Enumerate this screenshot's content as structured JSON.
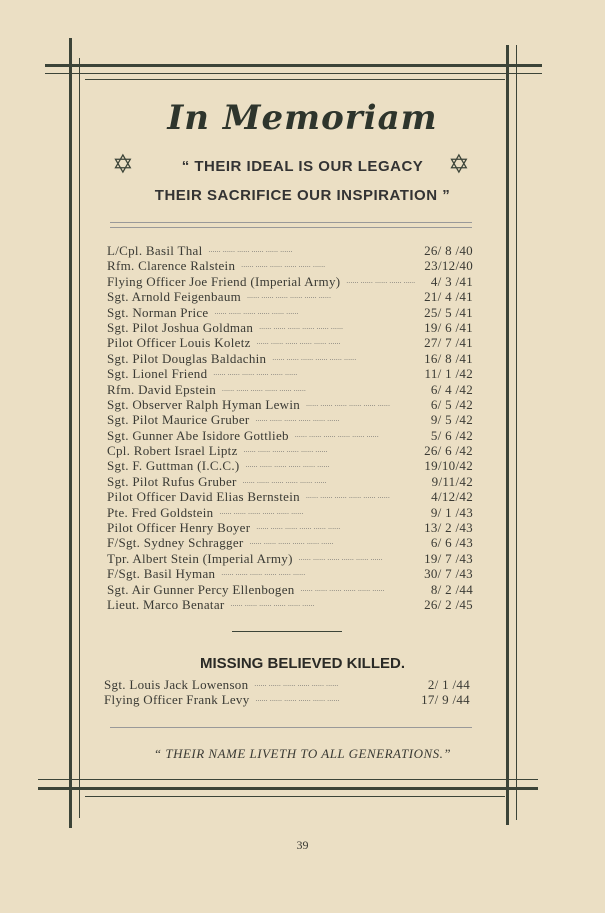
{
  "title": "In Memoriam",
  "motto_line1": "“ THEIR IDEAL IS OUR LEGACY",
  "motto_line2": "THEIR SACRIFICE OUR INSPIRATION ”",
  "icons": {
    "left": "star-of-david-icon",
    "right": "star-of-david-icon"
  },
  "fallen": [
    {
      "name": "L/Cpl. Basil Thal",
      "date": "26/ 8 /40"
    },
    {
      "name": "Rfm. Clarence Ralstein",
      "date": "23/12/40"
    },
    {
      "name": "Flying Officer Joe Friend (Imperial Army)",
      "date": "4/ 3 /41"
    },
    {
      "name": "Sgt. Arnold Feigenbaum",
      "date": "21/ 4 /41"
    },
    {
      "name": "Sgt. Norman Price",
      "date": "25/ 5 /41"
    },
    {
      "name": "Sgt. Pilot Joshua Goldman",
      "date": "19/ 6 /41"
    },
    {
      "name": "Pilot Officer Louis Koletz",
      "date": "27/ 7 /41"
    },
    {
      "name": "Sgt. Pilot Douglas Baldachin",
      "date": "16/ 8 /41"
    },
    {
      "name": "Sgt. Lionel Friend",
      "date": "11/ 1 /42"
    },
    {
      "name": "Rfm. David Epstein",
      "date": "6/ 4 /42"
    },
    {
      "name": "Sgt. Observer Ralph Hyman Lewin",
      "date": "6/ 5 /42"
    },
    {
      "name": "Sgt. Pilot Maurice Gruber",
      "date": "9/ 5 /42"
    },
    {
      "name": "Sgt. Gunner Abe Isidore Gottlieb",
      "date": "5/ 6 /42"
    },
    {
      "name": "Cpl. Robert Israel Liptz",
      "date": "26/ 6 /42"
    },
    {
      "name": "Sgt. F. Guttman (I.C.C.)",
      "date": "19/10/42"
    },
    {
      "name": "Sgt. Pilot Rufus Gruber",
      "date": "9/11/42"
    },
    {
      "name": "Pilot Officer David Elias Bernstein",
      "date": "4/12/42"
    },
    {
      "name": "Pte. Fred Goldstein",
      "date": "9/ 1 /43"
    },
    {
      "name": "Pilot Officer Henry Boyer",
      "date": "13/ 2 /43"
    },
    {
      "name": "F/Sgt. Sydney Schragger",
      "date": "6/ 6 /43"
    },
    {
      "name": "Tpr. Albert Stein (Imperial Army)",
      "date": "19/ 7 /43"
    },
    {
      "name": "F/Sgt. Basil Hyman",
      "date": "30/ 7 /43"
    },
    {
      "name": "Sgt. Air Gunner Percy Ellenbogen",
      "date": "8/ 2 /44"
    },
    {
      "name": "Lieut. Marco Benatar",
      "date": "26/ 2 /45"
    }
  ],
  "missing_heading": "MISSING BELIEVED KILLED.",
  "missing": [
    {
      "name": "Sgt. Louis Jack Lowenson",
      "date": "2/ 1 /44"
    },
    {
      "name": "Flying Officer Frank Levy",
      "date": "17/ 9 /44"
    }
  ],
  "footer_quote": "“ THEIR NAME LIVETH TO ALL GENERATIONS.”",
  "page_number": "39",
  "dots": "......      ......      ......      ......      ......      ......"
}
